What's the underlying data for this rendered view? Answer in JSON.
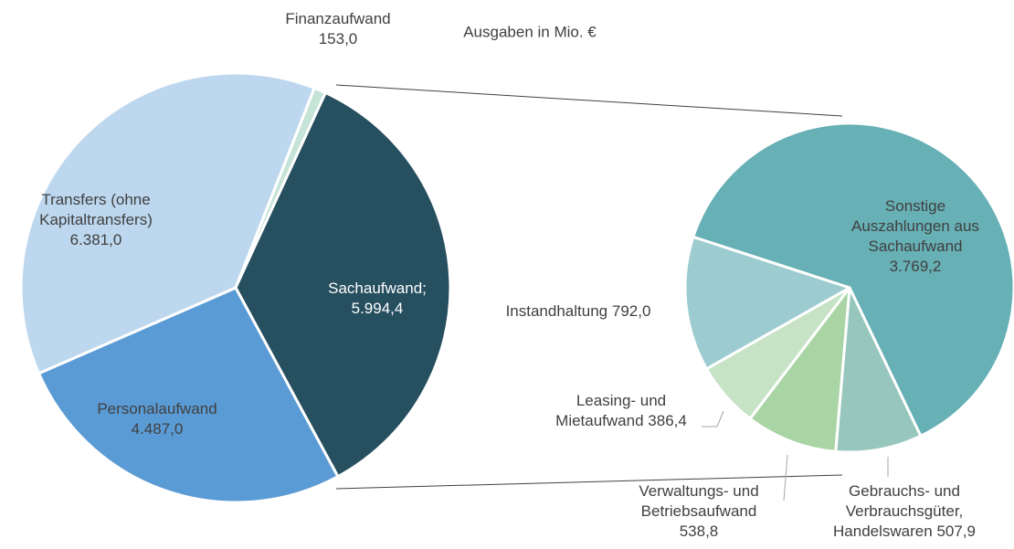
{
  "chart_data": {
    "type": "pie-of-pie",
    "title": "Ausgaben in Mio. €",
    "pies": [
      {
        "categories": [
          "Finanzaufwand",
          "Sachaufwand;",
          "Personalaufwand",
          "Transfers (ohne Kapitaltransfers)"
        ],
        "values": [
          153.0,
          5994.4,
          4487.0,
          6381.0
        ],
        "value_labels": [
          "153,0",
          "5.994,4",
          "4.487,0",
          "6.381,0"
        ],
        "colors": [
          "#c5e3d6",
          "#264f5f",
          "#5b9bd5",
          "#bdd7ee"
        ]
      },
      {
        "categories": [
          "Sonstige Auszahlungen aus Sachaufwand",
          "Gebrauchs- und Verbrauchsgüter, Handelswaren",
          "Verwaltungs- und Betriebsaufwand",
          "Leasing- und Mietaufwand",
          "Instandhaltung"
        ],
        "values": [
          3769.2,
          507.9,
          538.8,
          386.4,
          792.0
        ],
        "value_labels": [
          "3.769,2",
          "507,9",
          "538,8",
          "386,4",
          "792,0"
        ],
        "colors": [
          "#67b0b5",
          "#97c7bc",
          "#a9d5a4",
          "#c6e3c6",
          "#9ccbd0"
        ]
      }
    ]
  }
}
